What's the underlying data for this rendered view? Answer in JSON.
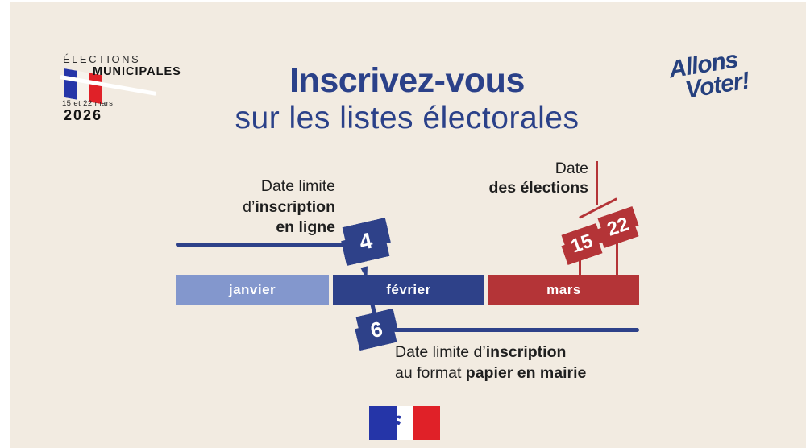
{
  "canvas": {
    "background": "#F2EBE1",
    "border_color": "#FFFFFF"
  },
  "colors": {
    "dark_blue": "#2E4189",
    "light_blue": "#8397CD",
    "red": "#B43437",
    "title_blue": "#2B4189",
    "text": "#1F1F1F",
    "flag_blue": "#2535A8",
    "flag_red": "#E02128"
  },
  "branding": {
    "elections_logo": {
      "line1": "ÉLECTIONS",
      "line2": "MUNICIPALES",
      "dates": "15 et 22 mars",
      "year": "2026"
    },
    "allons_voter": {
      "line1": "Allons",
      "line2": "Voter!"
    }
  },
  "title": {
    "bold": "Inscrivez-vous",
    "rest": "sur les listes électorales"
  },
  "timeline": {
    "months": [
      {
        "label": "janvier",
        "color": "#8397CD"
      },
      {
        "label": "février",
        "color": "#2E4189"
      },
      {
        "label": "mars",
        "color": "#B43437"
      }
    ],
    "online_deadline": {
      "day": "4",
      "label_lines": [
        [
          {
            "t": "Date limite",
            "b": false
          }
        ],
        [
          {
            "t": "d’",
            "b": false
          },
          {
            "t": "inscription",
            "b": true
          }
        ],
        [
          {
            "t": "en ligne",
            "b": true
          }
        ]
      ]
    },
    "election_dates": {
      "days": [
        "15",
        "22"
      ],
      "label_lines": [
        [
          {
            "t": "Date",
            "b": false
          }
        ],
        [
          {
            "t": "des élections",
            "b": true
          }
        ]
      ]
    },
    "paper_deadline": {
      "day": "6",
      "label_lines": [
        [
          {
            "t": "Date limite d’",
            "b": false
          },
          {
            "t": "inscription",
            "b": true
          }
        ],
        [
          {
            "t": "au format ",
            "b": false
          },
          {
            "t": "papier en mairie",
            "b": true
          }
        ]
      ]
    }
  },
  "footer": {
    "flag": "french-republic-marianne-flag"
  }
}
